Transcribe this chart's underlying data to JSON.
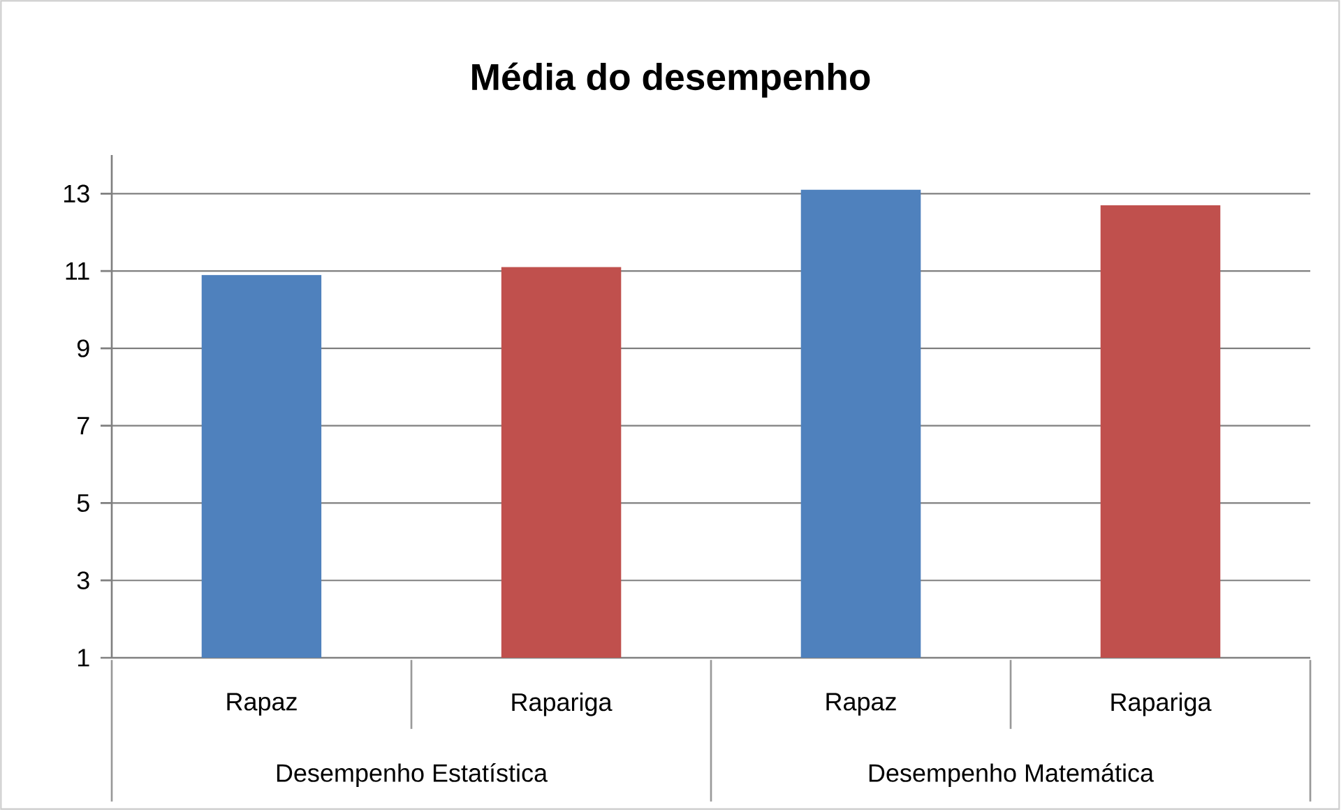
{
  "chart_data": {
    "type": "bar",
    "title": "Média do desempenho",
    "categories": [
      "Rapaz",
      "Rapariga",
      "Rapaz",
      "Rapariga"
    ],
    "values": [
      10.9,
      11.1,
      13.1,
      12.7
    ],
    "colors": [
      "#4f81bd",
      "#c0504d",
      "#4f81bd",
      "#c0504d"
    ],
    "annotations": [
      "Desempenho Estatística",
      "Desempenho Matemática"
    ],
    "ylim": [
      1,
      14
    ],
    "yticks": [
      1,
      3,
      5,
      7,
      9,
      11,
      13
    ],
    "grid": "y"
  }
}
